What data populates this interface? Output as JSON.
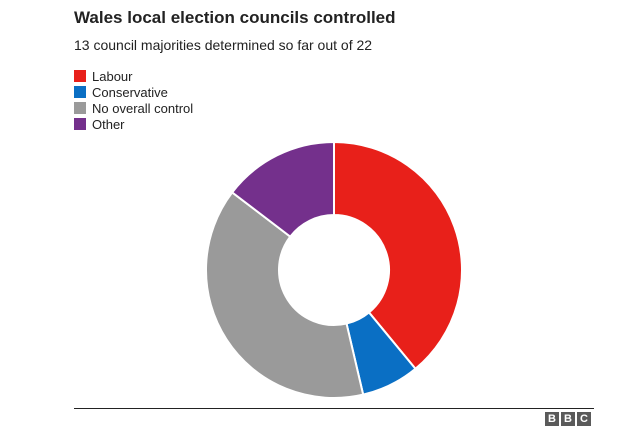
{
  "chart_data": {
    "type": "pie",
    "title": "Wales local election councils controlled",
    "subtitle": "13 council majorities determined so far out of 22",
    "legend_position": "top-left",
    "series": [
      {
        "name": "Labour",
        "value": 8,
        "color": "#e8201a"
      },
      {
        "name": "Conservative",
        "value": 1.5,
        "color": "#0a6fc4"
      },
      {
        "name": "No overall control",
        "value": 8,
        "color": "#9a9a9a"
      },
      {
        "name": "Other",
        "value": 3,
        "color": "#74308c"
      }
    ]
  },
  "footer": {
    "logo_letters": [
      "B",
      "B",
      "C"
    ]
  }
}
